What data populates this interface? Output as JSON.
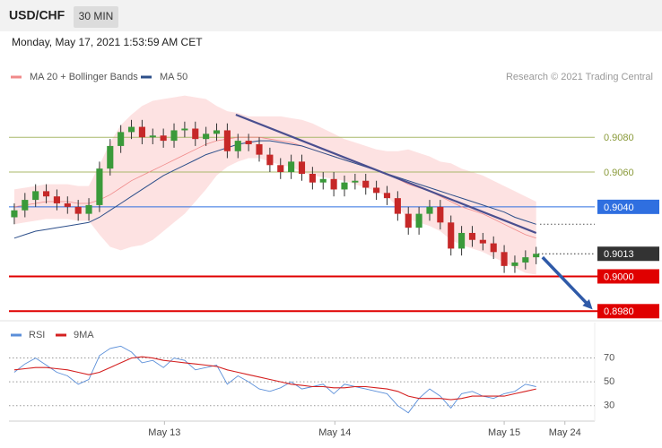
{
  "header": {
    "symbol": "USD/CHF",
    "interval": "30 MIN",
    "timestamp": "Monday, May 17, 2021 1:53:59 AM CET"
  },
  "chart_data": [
    {
      "type": "candlestick",
      "credit": "Research © 2021 Trading Central",
      "colors": {
        "up": "#3a9a3a",
        "down": "#c62828",
        "wick": "#333333"
      },
      "ohlc": {
        "open": [
          0.9034,
          0.9038,
          0.9044,
          0.9049,
          0.9046,
          0.9042,
          0.904,
          0.9036,
          0.9041,
          0.9062,
          0.9075,
          0.9083,
          0.9086,
          0.908,
          0.9081,
          0.9078,
          0.9084,
          0.9085,
          0.9079,
          0.9082,
          0.9084,
          0.9072,
          0.9078,
          0.9076,
          0.907,
          0.9064,
          0.906,
          0.9066,
          0.9059,
          0.9054,
          0.9056,
          0.905,
          0.9054,
          0.9055,
          0.9051,
          0.9048,
          0.9045,
          0.9036,
          0.9028,
          0.9036,
          0.904,
          0.9031,
          0.9016,
          0.9025,
          0.9021,
          0.9019,
          0.9014,
          0.9006,
          0.9008,
          0.9011
        ],
        "high": [
          0.9042,
          0.9048,
          0.9053,
          0.9053,
          0.905,
          0.9046,
          0.9044,
          0.9045,
          0.9066,
          0.9079,
          0.9087,
          0.909,
          0.909,
          0.9085,
          0.9085,
          0.9088,
          0.9089,
          0.9089,
          0.9086,
          0.9088,
          0.9088,
          0.9082,
          0.9082,
          0.908,
          0.9074,
          0.9068,
          0.907,
          0.907,
          0.9063,
          0.906,
          0.906,
          0.9058,
          0.9059,
          0.9059,
          0.9055,
          0.9052,
          0.9049,
          0.904,
          0.904,
          0.9044,
          0.9044,
          0.9035,
          0.9029,
          0.9029,
          0.9025,
          0.9023,
          0.9018,
          0.9012,
          0.9015,
          0.9017
        ],
        "low": [
          0.903,
          0.9034,
          0.904,
          0.9042,
          0.9038,
          0.9036,
          0.9032,
          0.9032,
          0.9037,
          0.9058,
          0.9071,
          0.9079,
          0.9076,
          0.9076,
          0.9074,
          0.9074,
          0.908,
          0.9075,
          0.9075,
          0.9078,
          0.9068,
          0.9068,
          0.9072,
          0.9066,
          0.906,
          0.9056,
          0.9056,
          0.9055,
          0.905,
          0.905,
          0.9046,
          0.9046,
          0.905,
          0.9047,
          0.9044,
          0.9041,
          0.9032,
          0.9024,
          0.9024,
          0.9032,
          0.9027,
          0.9012,
          0.9012,
          0.9017,
          0.9015,
          0.901,
          0.9002,
          0.9002,
          0.9004,
          0.9007
        ],
        "close": [
          0.9038,
          0.9044,
          0.9049,
          0.9046,
          0.9042,
          0.904,
          0.9036,
          0.9041,
          0.9062,
          0.9075,
          0.9083,
          0.9086,
          0.908,
          0.9081,
          0.9078,
          0.9084,
          0.9085,
          0.9079,
          0.9082,
          0.9084,
          0.9072,
          0.9078,
          0.9076,
          0.907,
          0.9064,
          0.906,
          0.9066,
          0.9059,
          0.9054,
          0.9056,
          0.905,
          0.9054,
          0.9055,
          0.9051,
          0.9048,
          0.9045,
          0.9036,
          0.9028,
          0.9036,
          0.904,
          0.9031,
          0.9016,
          0.9025,
          0.9021,
          0.9019,
          0.9014,
          0.9006,
          0.9008,
          0.9011,
          0.9013
        ]
      },
      "series": [
        {
          "name": "MA 20 + Bollinger Bands",
          "color": "#f08a8a",
          "band_color": "#fde2e2",
          "values": [
            0.904,
            0.9041,
            0.9042,
            0.9043,
            0.9043,
            0.9043,
            0.9042,
            0.9042,
            0.9044,
            0.9047,
            0.9051,
            0.9055,
            0.9058,
            0.9061,
            0.9064,
            0.9067,
            0.907,
            0.9073,
            0.9076,
            0.9078,
            0.9079,
            0.908,
            0.908,
            0.908,
            0.9079,
            0.9078,
            0.9077,
            0.9075,
            0.9073,
            0.9071,
            0.9069,
            0.9067,
            0.9065,
            0.9063,
            0.9061,
            0.9059,
            0.9056,
            0.9053,
            0.9051,
            0.9049,
            0.9046,
            0.9043,
            0.904,
            0.9038,
            0.9036,
            0.9033,
            0.903,
            0.9027,
            0.9024,
            0.9022
          ],
          "upper": [
            0.905,
            0.9051,
            0.9052,
            0.9053,
            0.9053,
            0.9053,
            0.9052,
            0.9052,
            0.9064,
            0.9077,
            0.9087,
            0.9093,
            0.9098,
            0.9101,
            0.9102,
            0.9103,
            0.9104,
            0.9103,
            0.9102,
            0.9098,
            0.9095,
            0.9094,
            0.9092,
            0.9092,
            0.9092,
            0.9092,
            0.9091,
            0.909,
            0.9088,
            0.9085,
            0.9082,
            0.9079,
            0.9077,
            0.9075,
            0.9073,
            0.9072,
            0.9072,
            0.9073,
            0.9071,
            0.9069,
            0.9066,
            0.9065,
            0.9062,
            0.906,
            0.9058,
            0.9055,
            0.9052,
            0.9049,
            0.9046,
            0.9043
          ],
          "lower": [
            0.903,
            0.9031,
            0.9032,
            0.9033,
            0.9033,
            0.9033,
            0.9032,
            0.9032,
            0.9024,
            0.9017,
            0.9015,
            0.9017,
            0.9018,
            0.9021,
            0.9026,
            0.9031,
            0.9036,
            0.9043,
            0.905,
            0.9058,
            0.9063,
            0.9066,
            0.9068,
            0.9068,
            0.9066,
            0.9064,
            0.9063,
            0.906,
            0.9058,
            0.9057,
            0.9056,
            0.9055,
            0.9053,
            0.9051,
            0.9049,
            0.9046,
            0.904,
            0.9033,
            0.9031,
            0.9029,
            0.9026,
            0.9021,
            0.9018,
            0.9016,
            0.9014,
            0.9011,
            0.9008,
            0.9005,
            0.9002,
            0.9001
          ]
        },
        {
          "name": "MA 50",
          "color": "#2d4f8a",
          "values": [
            0.9022,
            0.9024,
            0.9026,
            0.9027,
            0.9028,
            0.9029,
            0.903,
            0.9031,
            0.9034,
            0.9038,
            0.9042,
            0.9046,
            0.905,
            0.9054,
            0.9058,
            0.9061,
            0.9064,
            0.9067,
            0.907,
            0.9072,
            0.9074,
            0.9076,
            0.9077,
            0.9078,
            0.9078,
            0.9077,
            0.9076,
            0.9075,
            0.9073,
            0.9071,
            0.9069,
            0.9067,
            0.9065,
            0.9063,
            0.9061,
            0.9059,
            0.9057,
            0.9055,
            0.9053,
            0.9051,
            0.9049,
            0.9047,
            0.9045,
            0.9043,
            0.9041,
            0.9039,
            0.9037,
            0.9034,
            0.9032,
            0.903
          ]
        }
      ],
      "xlim": [
        0,
        55
      ],
      "xticks": [
        {
          "value": 14.6,
          "label": "May 13"
        },
        {
          "value": 30.6,
          "label": "May 14"
        },
        {
          "value": 46.5,
          "label": "May 15"
        },
        {
          "value": 52.2,
          "label": "May 24"
        }
      ],
      "ylim": [
        0.8975,
        0.911
      ],
      "levels": [
        {
          "value": 0.908,
          "label": "0.9080",
          "color": "#a8b86a",
          "style": "thin"
        },
        {
          "value": 0.906,
          "label": "0.9060",
          "color": "#a8b86a",
          "style": "thin"
        },
        {
          "value": 0.904,
          "label": "0.9040",
          "color": "#2f6fe0",
          "style": "box"
        },
        {
          "value": 0.9013,
          "label": "0.9013",
          "color": "#333333",
          "style": "current"
        },
        {
          "value": 0.9,
          "label": "0.9000",
          "color": "#e00000",
          "style": "thick"
        },
        {
          "value": 0.898,
          "label": "0.8980",
          "color": "#e00000",
          "style": "thick"
        }
      ],
      "trendline": {
        "x": [
          21.3,
          49.5
        ],
        "y": [
          0.9093,
          0.9025
        ],
        "color": "#4a4f8f"
      },
      "arrow": {
        "x": [
          50.1,
          54.8
        ],
        "y": [
          0.9011,
          0.8981
        ],
        "color": "#2f5aa8"
      }
    },
    {
      "type": "line",
      "series": [
        {
          "name": "RSI",
          "color": "#5b8fd9",
          "values": [
            58,
            65,
            70,
            64,
            58,
            55,
            48,
            52,
            72,
            78,
            80,
            75,
            66,
            68,
            62,
            70,
            68,
            60,
            62,
            64,
            48,
            55,
            50,
            44,
            42,
            45,
            50,
            44,
            46,
            48,
            40,
            48,
            46,
            44,
            42,
            40,
            30,
            24,
            36,
            44,
            38,
            28,
            40,
            42,
            38,
            36,
            40,
            42,
            48,
            46
          ]
        },
        {
          "name": "9MA",
          "color": "#d42020",
          "values": [
            60,
            61,
            62,
            62,
            61,
            60,
            58,
            56,
            58,
            62,
            66,
            70,
            71,
            70,
            68,
            67,
            66,
            65,
            64,
            63,
            60,
            58,
            56,
            54,
            52,
            50,
            48,
            47,
            46,
            46,
            45,
            45,
            46,
            46,
            45,
            44,
            42,
            38,
            36,
            36,
            36,
            35,
            36,
            38,
            38,
            38,
            38,
            40,
            42,
            44
          ]
        }
      ],
      "xlim": [
        0,
        55
      ],
      "ylim": [
        17,
        96
      ],
      "yticks": [
        70,
        50,
        30
      ]
    }
  ]
}
